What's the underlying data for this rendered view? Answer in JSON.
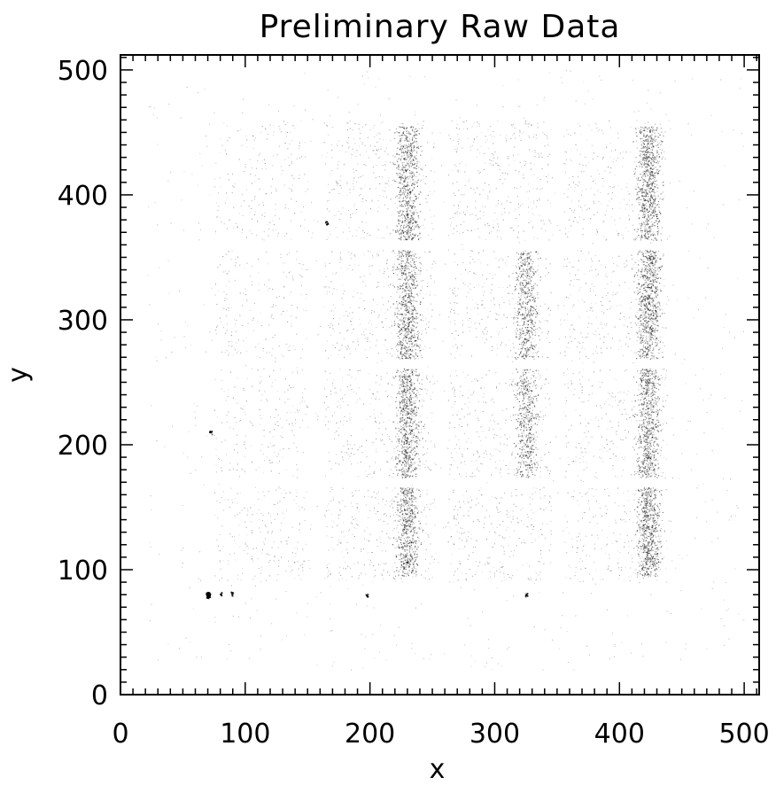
{
  "chart_data": {
    "type": "scatter",
    "title": "Preliminary Raw Data",
    "xlabel": "x",
    "ylabel": "y",
    "xlim": [
      0,
      512
    ],
    "ylim": [
      0,
      512
    ],
    "x_ticks": [
      0,
      100,
      200,
      300,
      400,
      500
    ],
    "y_ticks": [
      0,
      100,
      200,
      300,
      400,
      500
    ],
    "x_tick_labels": [
      "0",
      "100",
      "200",
      "300",
      "400",
      "500"
    ],
    "y_tick_labels": [
      "0",
      "100",
      "200",
      "300",
      "400",
      "500"
    ],
    "minor_tick_step": 10,
    "grid": false,
    "point_color": "#000000",
    "frame_color": "#000000",
    "background_color": "#ffffff",
    "event_regions": [
      {
        "x": [
          75,
          150
        ],
        "y": [
          90,
          460
        ],
        "density": 0.22
      },
      {
        "x": [
          163,
          253
        ],
        "y": [
          90,
          460
        ],
        "density": 0.32
      },
      {
        "x": [
          262,
          345
        ],
        "y": [
          90,
          460
        ],
        "density": 0.34
      },
      {
        "x": [
          355,
          438
        ],
        "y": [
          90,
          460
        ],
        "density": 0.3
      }
    ],
    "dense_columns": [
      {
        "x": 230,
        "y": [
          95,
          455
        ],
        "density": 0.75
      },
      {
        "x": 325,
        "y": [
          170,
          355
        ],
        "density": 0.55
      },
      {
        "x": 423,
        "y": [
          95,
          455
        ],
        "density": 0.8
      }
    ],
    "gap_rows_y": [
      170,
      265,
      360
    ],
    "gap_columns_x": [
      155,
      255,
      350
    ],
    "bright_spots": [
      {
        "x": 70,
        "y": 80
      },
      {
        "x": 72,
        "y": 210
      },
      {
        "x": 165,
        "y": 378
      },
      {
        "x": 80,
        "y": 81
      },
      {
        "x": 89,
        "y": 81
      },
      {
        "x": 197,
        "y": 80
      },
      {
        "x": 325,
        "y": 80
      }
    ]
  }
}
